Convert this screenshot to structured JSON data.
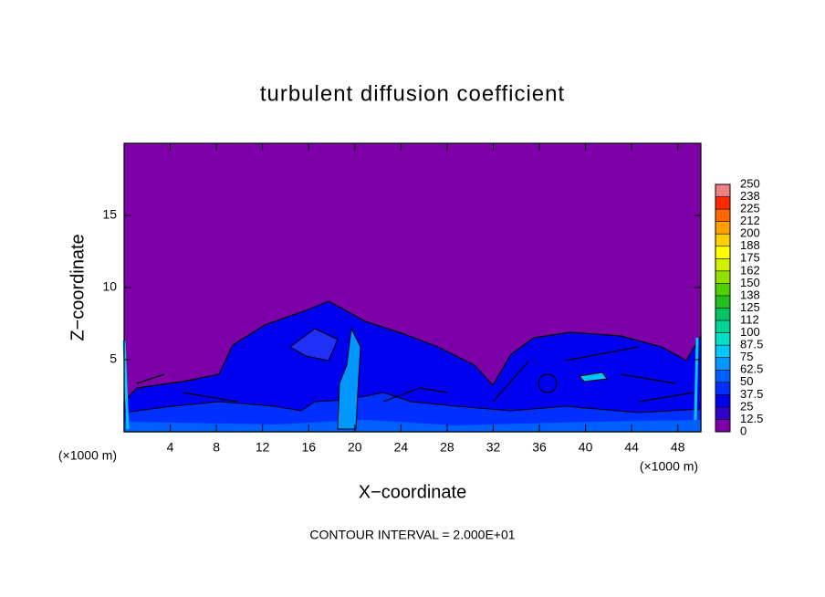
{
  "chart_data": {
    "type": "contour",
    "title": "turbulent diffusion coefficient",
    "x_label": "X−coordinate",
    "y_label": "Z−coordinate",
    "x_unit_labels": [
      "(×1000 m)",
      "(×1000 m)"
    ],
    "annotation": "CONTOUR INTERVAL = 2.000E+01",
    "xlim": [
      0,
      50
    ],
    "xticks": [
      4,
      8,
      12,
      16,
      20,
      24,
      28,
      32,
      36,
      40,
      44,
      48
    ],
    "ylim": [
      0,
      20
    ],
    "yticks": [
      5,
      10,
      15
    ],
    "colorbar": {
      "levels": [
        0,
        12.5,
        25,
        37.5,
        50,
        62.5,
        75,
        87.5,
        100,
        {
          "value": 112.5,
          "label": "112"
        },
        125,
        {
          "value": 137.5,
          "label": "138"
        },
        150,
        {
          "value": 162.5,
          "label": "162"
        },
        175,
        {
          "value": 187.5,
          "label": "188"
        },
        200,
        {
          "value": 212.5,
          "label": "212"
        },
        225,
        {
          "value": 237.5,
          "label": "238"
        },
        250
      ],
      "colors": [
        "#7e00a8",
        "#3000c8",
        "#0000f0",
        "#0030ff",
        "#0060ff",
        "#0098ff",
        "#00c8ff",
        "#00e0c8",
        "#00d494",
        "#00c464",
        "#20c020",
        "#50d000",
        "#90e000",
        "#d0f000",
        "#ffff00",
        "#ffd000",
        "#ffa000",
        "#ff6800",
        "#ff2800",
        "#f08080"
      ]
    }
  }
}
